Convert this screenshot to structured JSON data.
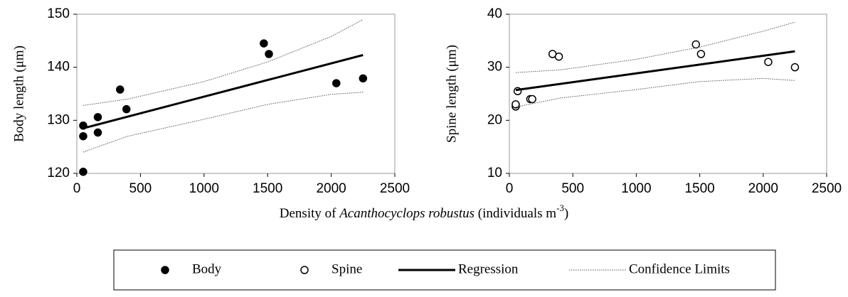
{
  "chart_data": [
    {
      "type": "scatter",
      "ylabel": "Body length (μm)",
      "xlim": [
        0,
        2500
      ],
      "xticks": [
        0,
        500,
        1000,
        1500,
        2000,
        2500
      ],
      "ylim": [
        120,
        150
      ],
      "yticks": [
        120,
        130,
        140,
        150
      ],
      "series": [
        {
          "name": "Body",
          "kind": "points",
          "marker": "filled",
          "color": "#000000",
          "x": [
            50,
            50,
            50,
            165,
            165,
            340,
            390,
            1470,
            1510,
            2040,
            2250
          ],
          "values": [
            129,
            127,
            120.3,
            130.6,
            127.7,
            135.8,
            132.1,
            144.5,
            142.5,
            137,
            137.9
          ]
        },
        {
          "name": "Regression",
          "kind": "line",
          "color": "#000000",
          "x": [
            50,
            2250
          ],
          "values": [
            128.5,
            142.3
          ]
        },
        {
          "name": "Confidence Limits",
          "kind": "band",
          "color": "#555555",
          "x": [
            50,
            400,
            1000,
            1500,
            2000,
            2250
          ],
          "upper": [
            132.8,
            134,
            137.3,
            141,
            145.8,
            149
          ],
          "lower": [
            124,
            127,
            130.2,
            133,
            134.9,
            135.3
          ]
        }
      ]
    },
    {
      "type": "scatter",
      "ylabel": "Spine length (μm)",
      "xlim": [
        0,
        2500
      ],
      "xticks": [
        0,
        500,
        1000,
        1500,
        2000,
        2500
      ],
      "ylim": [
        10,
        40
      ],
      "yticks": [
        10,
        20,
        30,
        40
      ],
      "series": [
        {
          "name": "Spine",
          "kind": "points",
          "marker": "open",
          "color": "#000000",
          "x": [
            50,
            50,
            65,
            165,
            180,
            340,
            390,
            1470,
            1510,
            2040,
            2250
          ],
          "values": [
            22.6,
            23,
            25.5,
            24,
            24,
            32.5,
            32,
            34.3,
            32.5,
            31,
            30
          ]
        },
        {
          "kind": "line",
          "color": "#000000",
          "x": [
            50,
            2250
          ],
          "values": [
            25.7,
            33
          ]
        },
        {
          "kind": "band",
          "color": "#555555",
          "x": [
            50,
            400,
            1000,
            1500,
            2000,
            2250
          ],
          "upper": [
            29,
            29.5,
            31.5,
            33.8,
            36.8,
            38.5
          ],
          "lower": [
            22.5,
            24.2,
            25.8,
            27.3,
            27.9,
            27.5
          ]
        }
      ]
    }
  ],
  "x_label": {
    "pre": "Density of ",
    "species": "Acanthocyclops robustus",
    "post": "  (individuals m",
    "sup": "-3",
    "end": ")"
  }
}
